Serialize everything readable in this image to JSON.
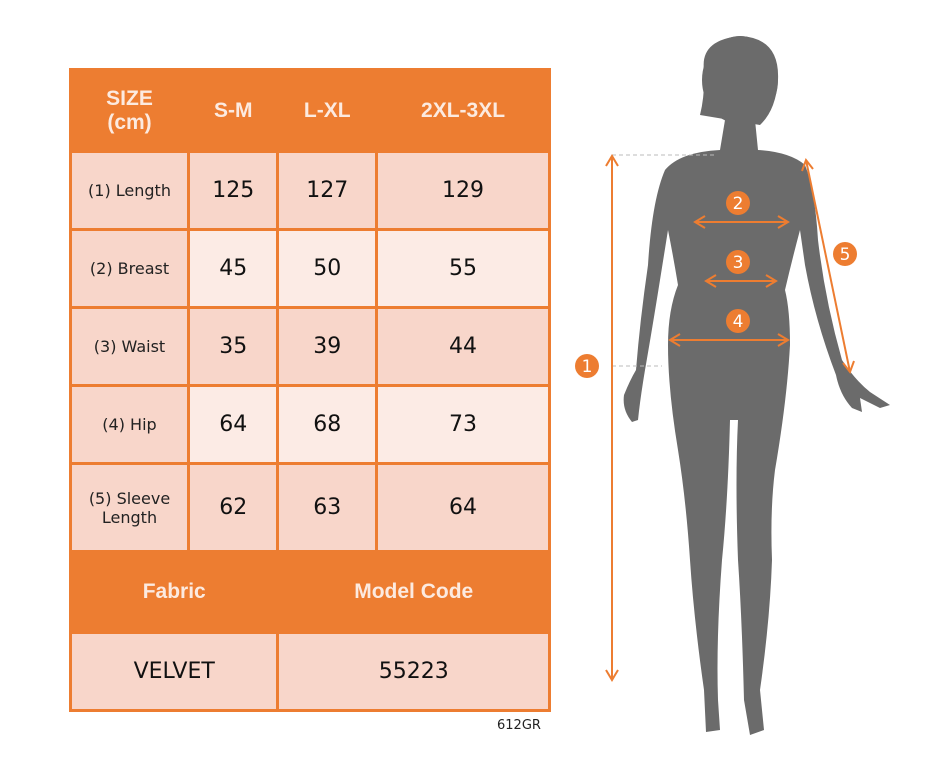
{
  "table": {
    "header": [
      "SIZE\n(cm)",
      "S-M",
      "L-XL",
      "2XL-3XL"
    ],
    "header_label_line1": "SIZE",
    "header_label_line2": "(cm)",
    "rows": [
      {
        "label": "(1) Length",
        "values": [
          "125",
          "127",
          "129"
        ]
      },
      {
        "label": "(2) Breast",
        "values": [
          "45",
          "50",
          "55"
        ]
      },
      {
        "label": "(3) Waist",
        "values": [
          "35",
          "39",
          "44"
        ]
      },
      {
        "label": "(4) Hip",
        "values": [
          "64",
          "68",
          "73"
        ]
      },
      {
        "label_line1": "(5) Sleeve",
        "label_line2": "Length",
        "values": [
          "62",
          "63",
          "64"
        ]
      }
    ],
    "fabric_header": "Fabric",
    "model_code_header": "Model Code",
    "fabric": "VELVET",
    "model_code": "55223"
  },
  "product_code": "612GR",
  "markers": [
    "1",
    "2",
    "3",
    "4",
    "5"
  ],
  "colors": {
    "accent": "#ED7D31",
    "cell_dark": "#F8D6CA",
    "cell_light": "#FCEBE5",
    "silhouette": "#6B6B6B"
  }
}
